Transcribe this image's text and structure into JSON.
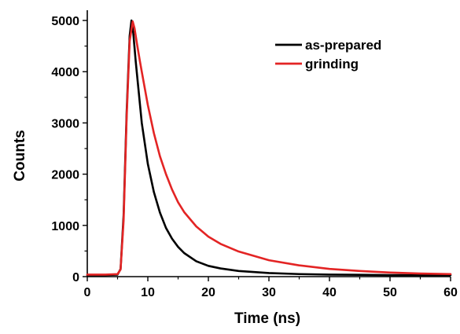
{
  "chart_data": {
    "type": "line",
    "title": "",
    "xlabel": "Time (ns)",
    "ylabel": "Counts",
    "xlim": [
      0,
      60
    ],
    "ylim": [
      0,
      5200
    ],
    "x_ticks": [
      0,
      10,
      20,
      30,
      40,
      50,
      60
    ],
    "y_ticks": [
      0,
      1000,
      2000,
      3000,
      4000,
      5000
    ],
    "x_tick_labels": [
      "0",
      "10",
      "20",
      "30",
      "40",
      "50",
      "60"
    ],
    "y_tick_labels": [
      "0",
      "1000",
      "2000",
      "3000",
      "4000",
      "5000"
    ],
    "grid": false,
    "legend_position": "top-right",
    "series": [
      {
        "name": "as-prepared",
        "color": "#000000",
        "x": [
          0,
          3,
          5.0,
          5.5,
          6.0,
          6.5,
          7.0,
          7.3,
          7.6,
          8,
          8.5,
          9,
          10,
          11,
          12,
          13,
          14,
          15,
          16,
          18,
          20,
          22,
          25,
          30,
          35,
          40,
          45,
          50,
          55,
          60
        ],
        "y": [
          30,
          30,
          40,
          150,
          1200,
          3200,
          4700,
          5000,
          4750,
          4200,
          3600,
          3000,
          2200,
          1650,
          1250,
          950,
          740,
          580,
          460,
          300,
          210,
          160,
          110,
          70,
          50,
          40,
          35,
          30,
          30,
          30
        ]
      },
      {
        "name": "grinding",
        "color": "#e32424",
        "x": [
          0,
          3,
          5.0,
          5.5,
          6.0,
          6.5,
          7.0,
          7.5,
          7.8,
          8.2,
          8.7,
          9,
          10,
          11,
          12,
          13,
          14,
          15,
          16,
          18,
          20,
          22,
          25,
          30,
          35,
          40,
          45,
          50,
          55,
          60
        ],
        "y": [
          40,
          40,
          50,
          140,
          1100,
          3100,
          4600,
          4980,
          4850,
          4550,
          4200,
          4000,
          3350,
          2800,
          2350,
          2000,
          1700,
          1450,
          1260,
          980,
          780,
          640,
          490,
          320,
          220,
          150,
          110,
          80,
          60,
          50
        ]
      }
    ]
  }
}
